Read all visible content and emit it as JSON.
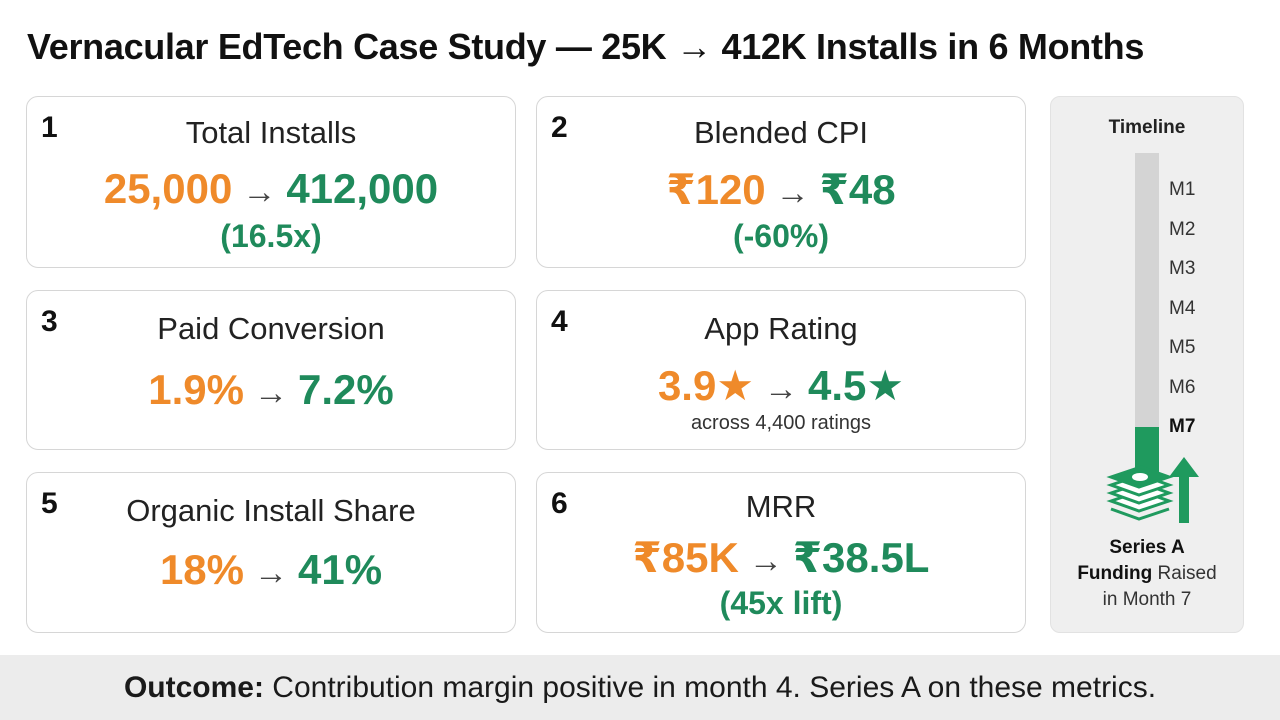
{
  "title": "Vernacular EdTech Case Study — 25K → 412K Installs in 6 Months",
  "arrow": "→",
  "cards": [
    {
      "number": "1",
      "label": "Total Installs",
      "old": "25,000",
      "new": "412,000",
      "sub": "(16.5x)"
    },
    {
      "number": "2",
      "label": "Blended CPI",
      "old": "₹120",
      "new": "₹48",
      "sub": "(-60%)"
    },
    {
      "number": "3",
      "label": "Paid Conversion",
      "old": "1.9%",
      "new": "7.2%"
    },
    {
      "number": "4",
      "label": "App Rating",
      "old": "3.9★",
      "new": "4.5★",
      "note": "across 4,400 ratings"
    },
    {
      "number": "5",
      "label": "Organic Install Share",
      "old": "18%",
      "new": "41%"
    },
    {
      "number": "6",
      "label": "MRR",
      "old": "₹85K",
      "new": "₹38.5L",
      "sub": "(45x lift)"
    }
  ],
  "timeline": {
    "title": "Timeline",
    "months": [
      "M1",
      "M2",
      "M3",
      "M4",
      "M5",
      "M6",
      "M7"
    ],
    "caption_bold_1": "Series A",
    "caption_bold_2": "Funding",
    "caption_rest_2": " Raised",
    "caption_line_3": "in Month 7"
  },
  "footer": {
    "lead": "Outcome:",
    "text": " Contribution margin positive in month 4. Series A on these metrics."
  },
  "watermark": "",
  "colors": {
    "old": "#ef8a2a",
    "new": "#1f8a5b",
    "timeline_fill": "#1f9a5e"
  }
}
